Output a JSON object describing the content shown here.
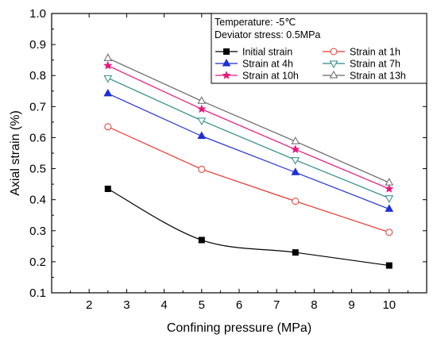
{
  "chart_data": {
    "type": "line",
    "xlabel": "Confining pressure (MPa)",
    "ylabel": "Axial strain (%)",
    "xlim": [
      1,
      11
    ],
    "ylim": [
      0.1,
      1.0
    ],
    "x_ticks": [
      2,
      3,
      4,
      5,
      6,
      7,
      8,
      9,
      10
    ],
    "y_ticks": [
      0.1,
      0.2,
      0.3,
      0.4,
      0.5,
      0.6,
      0.7,
      0.8,
      0.9,
      1.0
    ],
    "x": [
      2.5,
      5,
      7.5,
      10
    ],
    "grid": false,
    "legend_position": "top-right",
    "annotations": [
      "Temperature: -5℃",
      "Deviator stress: 0.5MPa"
    ],
    "series": [
      {
        "name": "Initial strain",
        "values": [
          0.435,
          0.27,
          0.23,
          0.188
        ],
        "color": "#000000",
        "marker": "square"
      },
      {
        "name": "Strain at 1h",
        "values": [
          0.635,
          0.498,
          0.395,
          0.295
        ],
        "color": "#e8352a",
        "marker": "circle-open"
      },
      {
        "name": "Strain at 4h",
        "values": [
          0.742,
          0.605,
          0.488,
          0.37
        ],
        "color": "#1f2fd6",
        "marker": "triangle-up"
      },
      {
        "name": "Strain at 7h",
        "values": [
          0.792,
          0.655,
          0.528,
          0.405
        ],
        "color": "#2a8a88",
        "marker": "triangle-down-open"
      },
      {
        "name": "Strain at 10h",
        "values": [
          0.832,
          0.692,
          0.562,
          0.435
        ],
        "color": "#e8177c",
        "marker": "star"
      },
      {
        "name": "Strain at 13h",
        "values": [
          0.856,
          0.718,
          0.588,
          0.455
        ],
        "color": "#666666",
        "marker": "triangle-up-open"
      }
    ]
  }
}
